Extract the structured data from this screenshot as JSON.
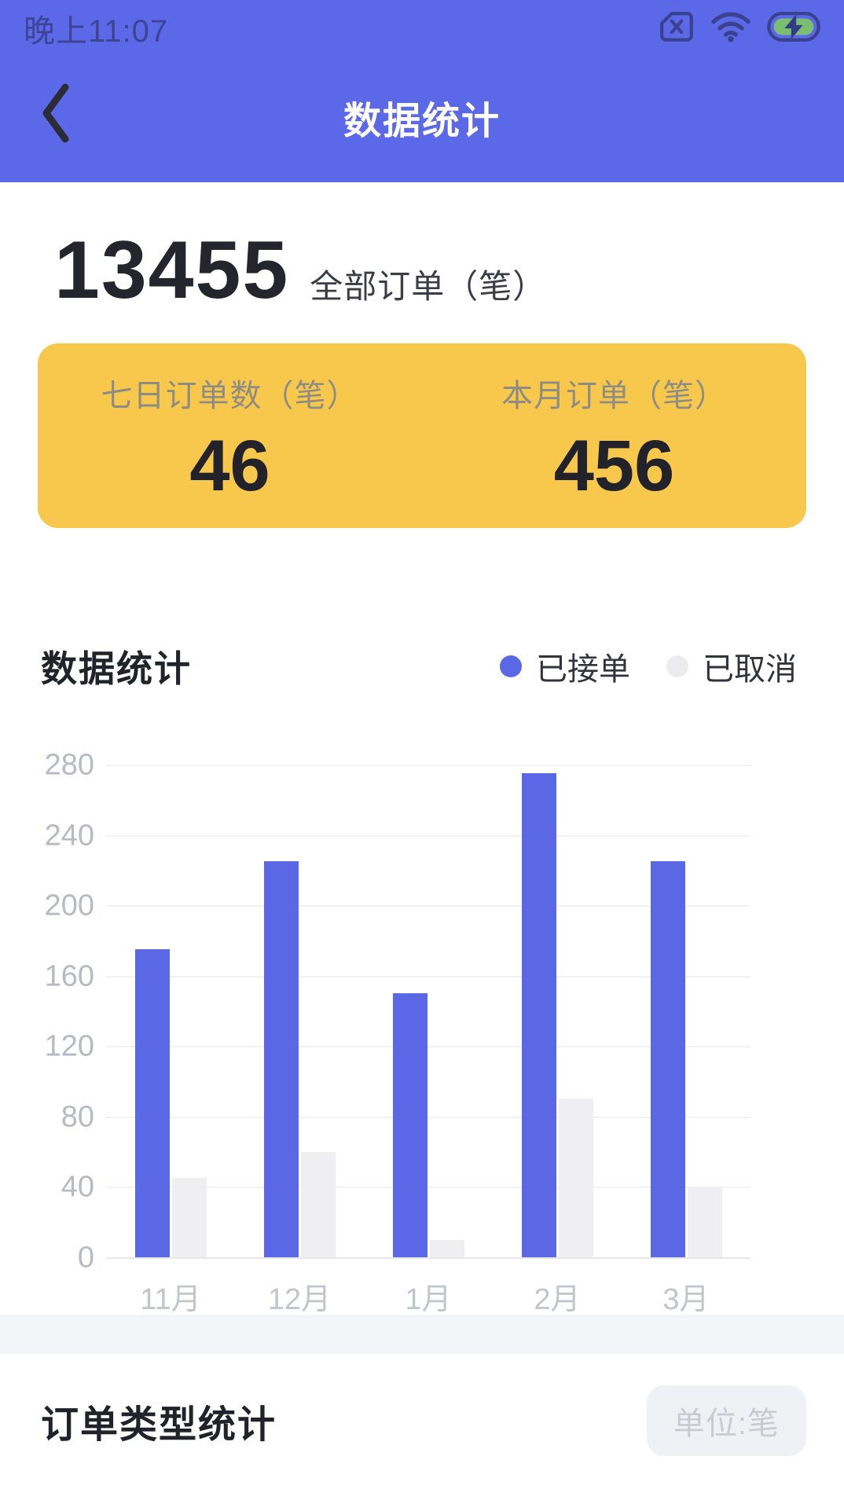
{
  "status_bar": {
    "time": "晚上11:07",
    "icons": [
      "no-sim-icon",
      "wifi-icon",
      "battery-charging-icon"
    ]
  },
  "header": {
    "title": "数据统计"
  },
  "summary": {
    "total_value": "13455",
    "total_label": "全部订单（笔）"
  },
  "highlight_card": {
    "bg_color": "#F7C84C",
    "items": [
      {
        "label": "七日订单数（笔）",
        "value": "46"
      },
      {
        "label": "本月订单（笔）",
        "value": "456"
      }
    ]
  },
  "stats_section": {
    "title": "数据统计"
  },
  "chart_data": {
    "type": "bar",
    "title": "数据统计",
    "categories": [
      "11月",
      "12月",
      "1月",
      "2月",
      "3月"
    ],
    "series": [
      {
        "name": "已接单",
        "color": "#5B68E6",
        "values": [
          175,
          225,
          150,
          275,
          225
        ]
      },
      {
        "name": "已取消",
        "color": "#EFEFF2",
        "values": [
          45,
          60,
          10,
          90,
          40
        ]
      }
    ],
    "xlabel": "",
    "ylabel": "",
    "ylim": [
      0,
      280
    ],
    "yticks": [
      0,
      40,
      80,
      120,
      160,
      200,
      240,
      280
    ],
    "grid": true,
    "legend_position": "top-right"
  },
  "order_type_section": {
    "title": "订单类型统计",
    "unit_badge": "单位:笔"
  },
  "colors": {
    "header_bg": "#5B68E8",
    "card_bg": "#F7C84C",
    "bar_accepted": "#5B68E6",
    "bar_cancelled": "#EFEFF2",
    "battery_green": "#7CBE70"
  }
}
